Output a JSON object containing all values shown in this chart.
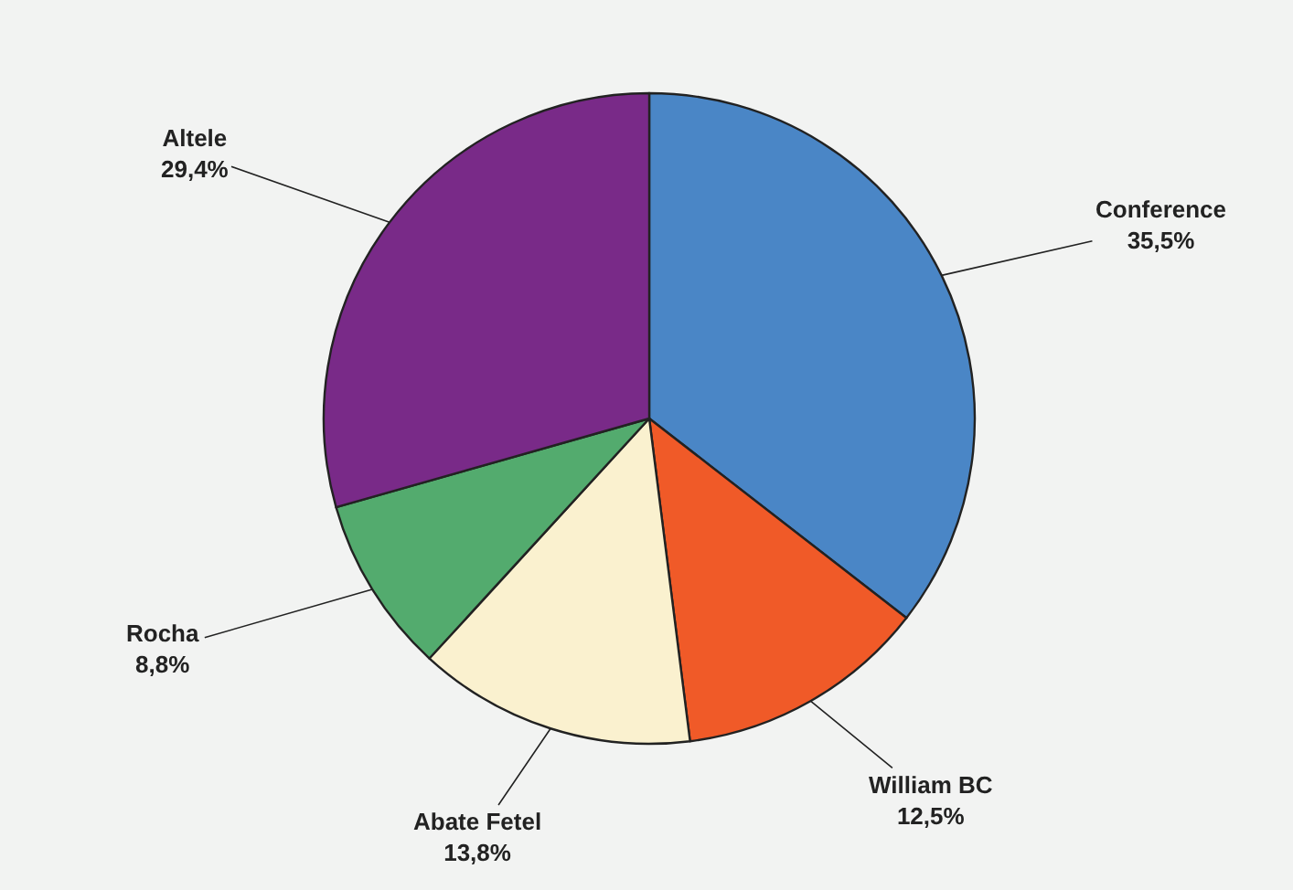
{
  "chart_data": {
    "type": "pie",
    "categories": [
      "Conference",
      "William BC",
      "Abate Fetel",
      "Rocha",
      "Altele"
    ],
    "values": [
      35.5,
      12.5,
      13.8,
      8.8,
      29.4
    ],
    "value_labels": [
      "35,5%",
      "12,5%",
      "13,8%",
      "8,8%",
      "29,4%"
    ],
    "colors": [
      "#4a86c6",
      "#f05a28",
      "#faf1cf",
      "#53ab6e",
      "#792a88"
    ],
    "legend": false
  }
}
